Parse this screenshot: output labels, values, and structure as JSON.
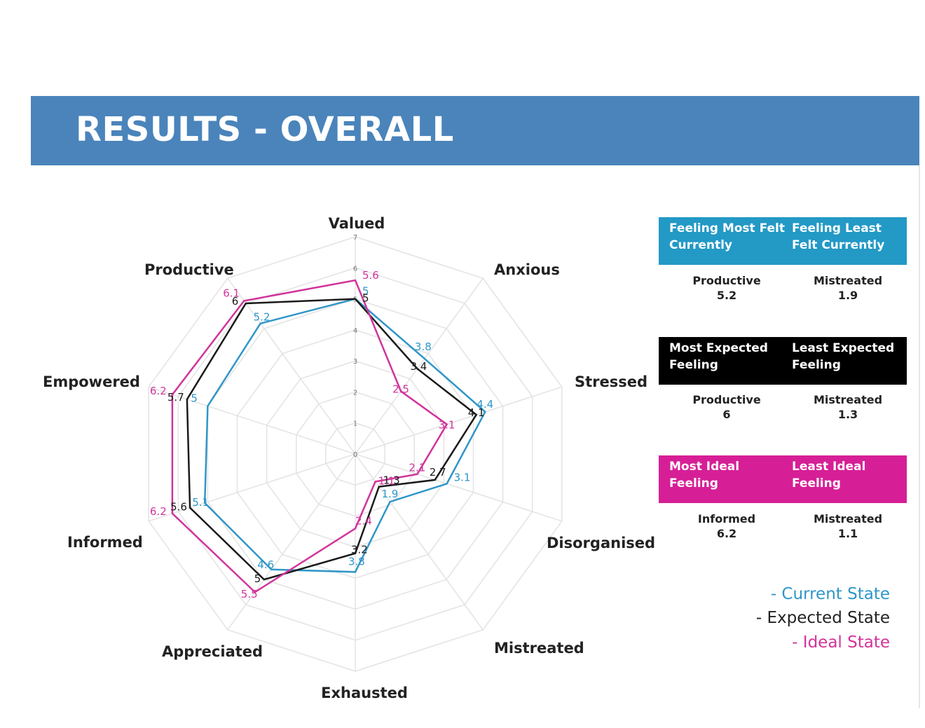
{
  "header": {
    "title": "RESULTS - OVERALL"
  },
  "chart_data": {
    "type": "radar",
    "axes": [
      "Valued",
      "Anxious",
      "Stressed",
      "Disorganised",
      "Mistreated",
      "Exhausted",
      "Appreciated",
      "Informed",
      "Empowered",
      "Productive"
    ],
    "rmin": 0,
    "rmax": 7,
    "tick_labels": [
      "0",
      "1",
      "2",
      "3",
      "4",
      "5",
      "6",
      "7"
    ],
    "series": [
      {
        "name": "Current State",
        "color": "#2f96c8",
        "values": [
          5,
          3.8,
          4.4,
          3.1,
          1.9,
          3.8,
          4.6,
          5.1,
          5,
          5.2
        ],
        "labels": [
          "5",
          "3.8",
          "4.4",
          "3.1",
          "1.9",
          "3.8",
          "4.6",
          "5.1",
          "5",
          "5.2"
        ]
      },
      {
        "name": "Expected State",
        "color": "#1a1a1a",
        "values": [
          5,
          3.4,
          4.1,
          2.7,
          1.3,
          3.2,
          5,
          5.6,
          5.7,
          6
        ],
        "labels": [
          "5",
          "3.4",
          "4.1",
          "2.7",
          "1.3",
          "3.2",
          "5",
          "5.6",
          "5.7",
          "6"
        ]
      },
      {
        "name": "Ideal State",
        "color": "#d1349b",
        "values": [
          5.6,
          2.5,
          3.1,
          2.1,
          1.1,
          2.4,
          5.5,
          6.2,
          6.2,
          6.1
        ],
        "labels": [
          "5.6",
          "2.5",
          "3.1",
          "2.1",
          "1.1",
          "2.4",
          "5.5",
          "6.2",
          "6.2",
          "6.1"
        ]
      }
    ]
  },
  "summary": [
    {
      "color": "#2399c6",
      "head1": "Feeling Most Felt Currently",
      "head2": "Feeling Least Felt Currently",
      "val1": "Productive",
      "num1": "5.2",
      "val2": "Mistreated",
      "num2": "1.9"
    },
    {
      "color": "#000000",
      "head1": "Most Expected Feeling",
      "head2": "Least Expected Feeling",
      "val1": "Productive",
      "num1": "6",
      "val2": "Mistreated",
      "num2": "1.3"
    },
    {
      "color": "#d61f96",
      "head1": "Most Ideal Feeling",
      "head2": "Least Ideal Feeling",
      "val1": "Informed",
      "num1": "6.2",
      "val2": "Mistreated",
      "num2": "1.1"
    }
  ],
  "legend": [
    {
      "text": "- Current State",
      "color": "#2f96c8"
    },
    {
      "text": "- Expected State",
      "color": "#222222"
    },
    {
      "text": "- Ideal State",
      "color": "#d1349b"
    }
  ]
}
